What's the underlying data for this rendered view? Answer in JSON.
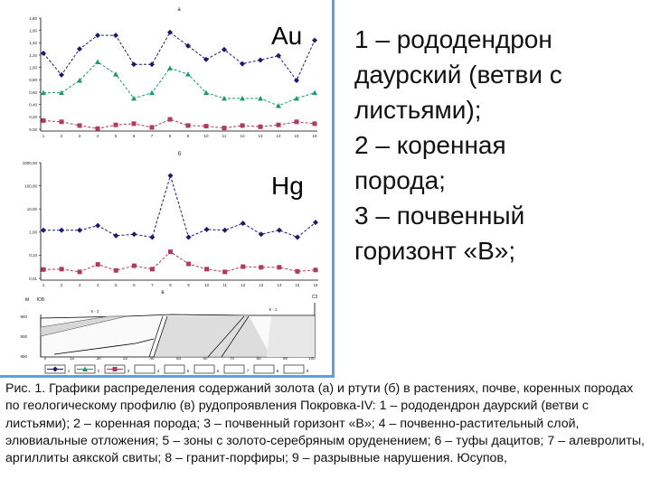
{
  "figure": {
    "chart_data": [
      {
        "type": "line",
        "title": "а",
        "x": [
          1,
          2,
          3,
          4,
          5,
          6,
          7,
          8,
          9,
          10,
          11,
          12,
          13,
          14,
          15,
          16
        ],
        "ylim": [
          0,
          1.8
        ],
        "yticks": [
          "0,00",
          "0,20",
          "0,40",
          "0,60",
          "0,80",
          "1,00",
          "1,20",
          "1,40",
          "1,60",
          "1,80"
        ],
        "grid": false,
        "series": [
          {
            "name": "1",
            "color": "#1a1a6e",
            "marker": "diamond",
            "values": [
              1.23,
              0.88,
              1.3,
              1.52,
              1.52,
              1.05,
              1.05,
              1.57,
              1.35,
              1.13,
              1.29,
              1.06,
              1.12,
              1.19,
              0.79,
              1.44
            ]
          },
          {
            "name": "2",
            "color": "#1e9a6a",
            "marker": "triangle",
            "values": [
              0.59,
              0.59,
              0.79,
              1.09,
              0.89,
              0.5,
              0.59,
              0.99,
              0.89,
              0.59,
              0.5,
              0.5,
              0.5,
              0.38,
              0.5,
              0.59
            ]
          },
          {
            "name": "3",
            "color": "#b03a5a",
            "marker": "square",
            "values": [
              0.14,
              0.12,
              0.06,
              0.01,
              0.07,
              0.09,
              0.03,
              0.16,
              0.06,
              0.05,
              0.02,
              0.06,
              0.04,
              0.07,
              0.12,
              0.09
            ]
          }
        ],
        "element_label": "Au"
      },
      {
        "type": "line",
        "title": "б",
        "x": [
          1,
          2,
          3,
          4,
          5,
          6,
          7,
          8,
          9,
          10,
          11,
          12,
          13,
          14,
          15,
          16
        ],
        "yscale": "log",
        "ylim": [
          0.01,
          1000
        ],
        "yticks": [
          "0,01",
          "0,10",
          "1,00",
          "10,00",
          "100,00",
          "1000,00"
        ],
        "grid": false,
        "series": [
          {
            "name": "1",
            "color": "#1a1a6e",
            "marker": "diamond",
            "values": [
              1.2,
              1.2,
              1.2,
              1.9,
              0.7,
              0.8,
              0.6,
              275,
              0.6,
              1.3,
              1.2,
              2.4,
              0.8,
              1.2,
              0.6,
              2.6
            ]
          },
          {
            "name": "3",
            "color": "#b03a5a",
            "marker": "square",
            "values": [
              0.024,
              0.025,
              0.019,
              0.04,
              0.022,
              0.035,
              0.025,
              0.14,
              0.042,
              0.025,
              0.019,
              0.032,
              0.03,
              0.03,
              0.02,
              0.023
            ]
          }
        ],
        "element_label": "Hg"
      }
    ],
    "section": {
      "title": "в",
      "left_end": "ЮВ",
      "right_end": "СЗ",
      "unit": "м",
      "zone_left": "К - 2",
      "zone_right": "К - 1",
      "elevations": [
        "950",
        "900",
        "850"
      ],
      "distances": [
        "0",
        "15",
        "30",
        "32",
        "40",
        "50",
        "60",
        "70",
        "80",
        "90",
        "100"
      ],
      "legend_numbers": [
        "1",
        "2",
        "3",
        "4",
        "5",
        "6",
        "7",
        "8",
        "9"
      ]
    }
  },
  "legend_lines": [
    "1 – рододендрон",
    "даурский (ветви с",
    "листьями);",
    "2 – коренная",
    "порода;",
    "3 – почвенный",
    "горизонт «В»;"
  ],
  "caption": "Рис. 1. Графики распределения содержаний золота (а) и ртути (б) в растениях, почве, коренных породах по геологическому профилю (в) рудопроявления Покровка-IV: 1 – рододендрон даурский (ветви с листьями); 2 – коренная порода; 3 – почвенный горизонт «В»; 4 – почвенно-растительный слой, элювиальные отложения; 5 – зоны с золото-серебряным оруденением; 6 – туфы дацитов; 7 – алевролиты, аргиллиты аякской свиты; 8 – гранит-порфиры; 9 – разрывные нарушения. Юсупов,"
}
